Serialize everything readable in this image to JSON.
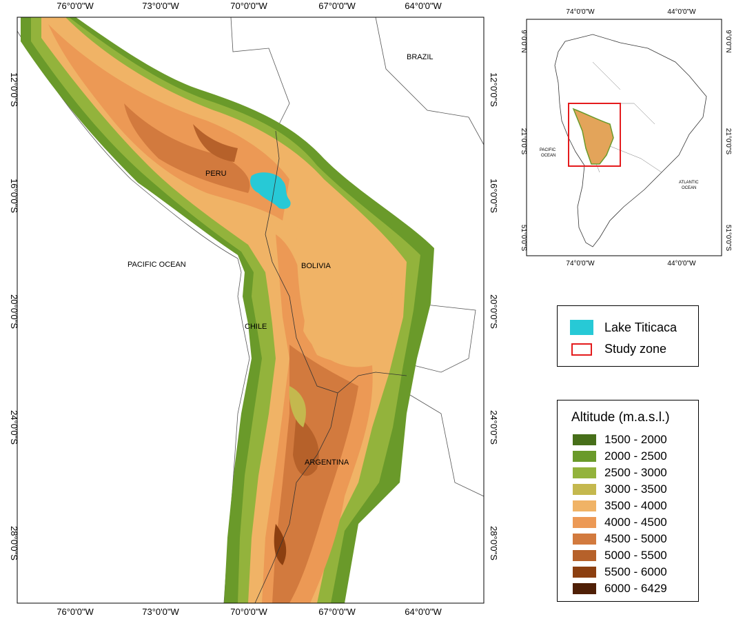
{
  "main_map": {
    "top_ticks": [
      "76°0'0\"W",
      "73°0'0\"W",
      "70°0'0\"W",
      "67°0'0\"W",
      "64°0'0\"W"
    ],
    "bottom_ticks": [
      "76°0'0\"W",
      "73°0'0\"W",
      "70°0'0\"W",
      "67°0'0\"W",
      "64°0'0\"W"
    ],
    "left_ticks": [
      "12°0'0\"S",
      "16°0'0\"S",
      "20°0'0\"S",
      "24°0'0\"S",
      "28°0'0\"S"
    ],
    "right_ticks": [
      "12°0'0\"S",
      "16°0'0\"S",
      "20°0'0\"S",
      "24°0'0\"S",
      "28°0'0\"S"
    ],
    "labels": {
      "brazil": "BRAZIL",
      "peru": "PERU",
      "bolivia": "BOLIVIA",
      "pacific": "PACIFIC OCEAN",
      "chile": "CHILE",
      "argentina": "ARGENTINA"
    }
  },
  "inset_map": {
    "top_ticks": [
      "74°0'0\"W",
      "44°0'0\"W"
    ],
    "bottom_ticks": [
      "74°0'0\"W",
      "44°0'0\"W"
    ],
    "left_ticks": [
      "9°0'0\"N",
      "21°0'0\"S",
      "51°0'0\"S"
    ],
    "right_ticks": [
      "9°0'0\"N",
      "21°0'0\"S",
      "51°0'0\"S"
    ],
    "labels": {
      "pacific_1": "PACIFIC",
      "pacific_2": "OCEAN",
      "atlantic_1": "ATLANTIC",
      "atlantic_2": "OCEAN"
    }
  },
  "key_legend": {
    "items": [
      {
        "label": "Lake Titicaca",
        "color": "#27c9d6"
      },
      {
        "label": "Study zone",
        "color": "#e41a1c"
      }
    ]
  },
  "altitude_legend": {
    "title": "Altitude (m.a.s.l.)",
    "classes": [
      {
        "label": "1500 - 2000",
        "color": "#476f1a"
      },
      {
        "label": "2000 - 2500",
        "color": "#6a9a2a"
      },
      {
        "label": "2500 - 3000",
        "color": "#93b33c"
      },
      {
        "label": "3000 - 3500",
        "color": "#c4b84e"
      },
      {
        "label": "3500 - 4000",
        "color": "#f0b366"
      },
      {
        "label": "4000 - 4500",
        "color": "#ec9955"
      },
      {
        "label": "4500 - 5000",
        "color": "#d27a3e"
      },
      {
        "label": "5000 - 5500",
        "color": "#b6612a"
      },
      {
        "label": "5500 - 6000",
        "color": "#8c3f10"
      },
      {
        "label": "6000 - 6429",
        "color": "#4f1f06"
      }
    ]
  }
}
